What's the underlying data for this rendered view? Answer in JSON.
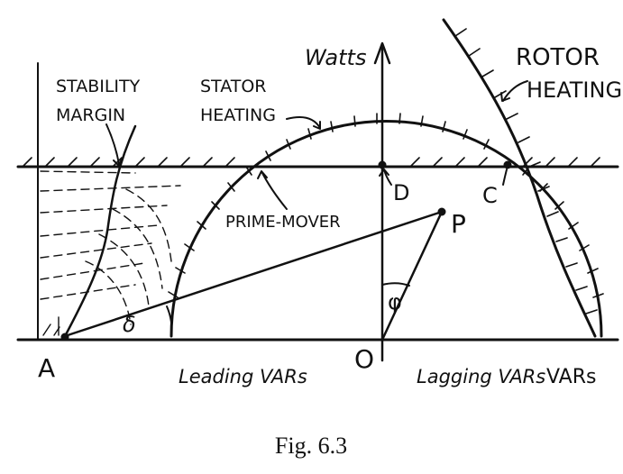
{
  "labels": {
    "watts": "Watts",
    "rotor_heating_1": "ROTOR",
    "rotor_heating_2": "HEATING",
    "stability_1": "STABILITY",
    "stability_2": "MARGIN",
    "stator_1": "STATOR",
    "stator_2": "HEATING",
    "prime_mover": "PRIME-MOVER",
    "point_d": "D",
    "point_c": "C",
    "point_p": "P",
    "point_a": "A",
    "point_o": "O",
    "phi": "φ",
    "delta": "δ",
    "leading_vars": "Leading VARs",
    "lagging_vars": "Lagging VARs",
    "vars": "VARs"
  },
  "caption": "Fig. 6.3",
  "colors": {
    "ink": "#111111",
    "background": "#ffffff"
  }
}
